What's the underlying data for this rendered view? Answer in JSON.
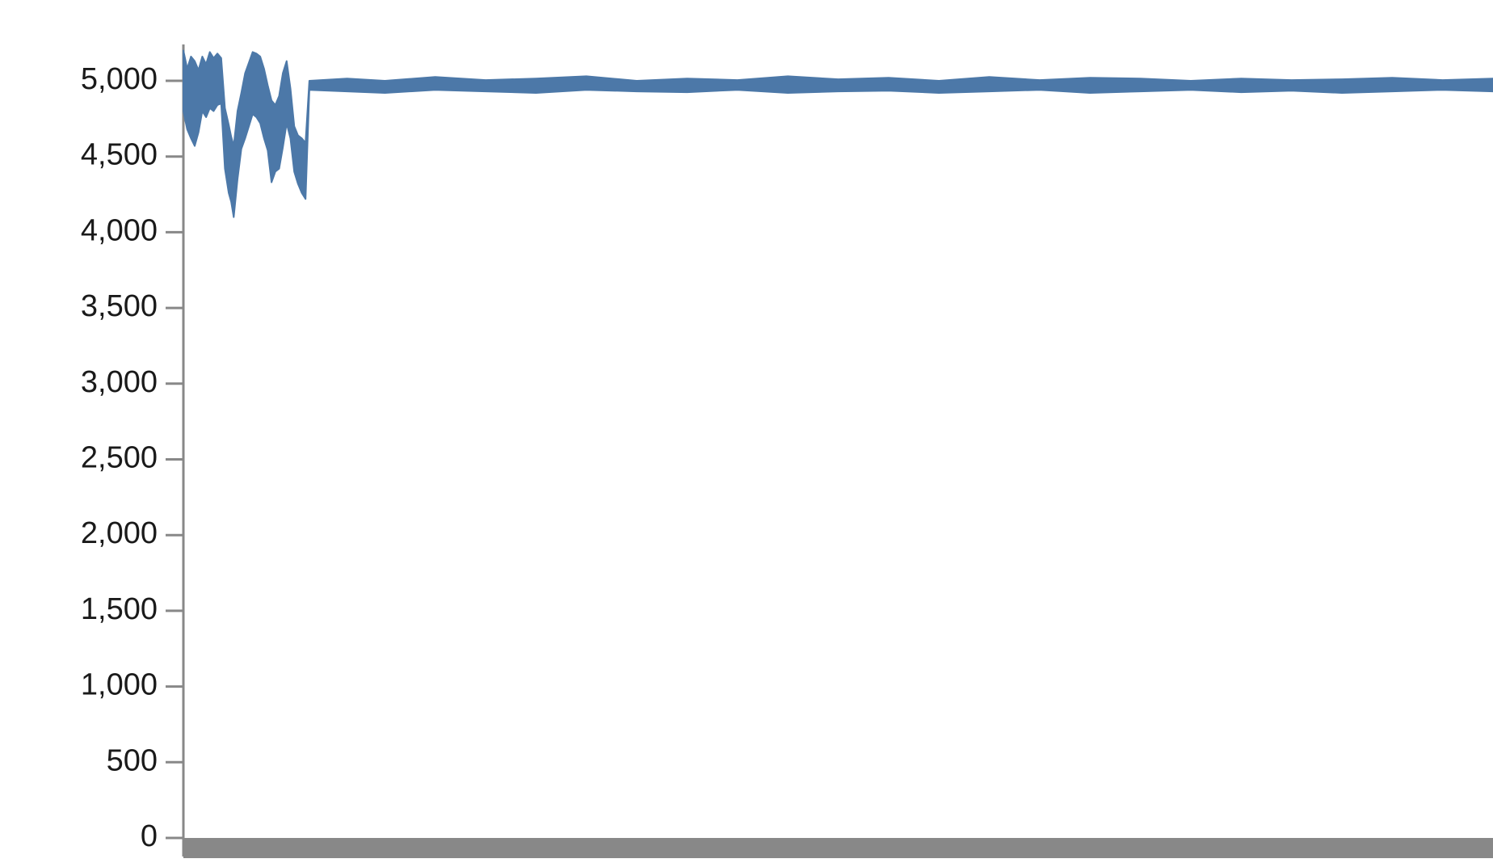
{
  "chart_data": {
    "type": "area",
    "title": "",
    "xlabel": "",
    "ylabel": "",
    "ylim": [
      0,
      5200
    ],
    "yticks": [
      0,
      500,
      1000,
      1500,
      2000,
      2500,
      3000,
      3500,
      4000,
      4500,
      5000
    ],
    "ytick_labels": [
      "0",
      "500",
      "1,000",
      "1,500",
      "2,000",
      "2,500",
      "3,000",
      "3,500",
      "4,000",
      "4,500",
      "5,000"
    ],
    "x_tick_labels_visible": false,
    "grid": false,
    "legend": "none",
    "colors": {
      "series": "#4c78a8",
      "axis": "#888888",
      "text": "#1a1a1a"
    },
    "series": [
      {
        "x": [
          0,
          3,
          6,
          9,
          12,
          15,
          18,
          21,
          24,
          27,
          30,
          33,
          36,
          38,
          40,
          43,
          46,
          49,
          52,
          55,
          58,
          61,
          64,
          67,
          70,
          73,
          76,
          79,
          82,
          85,
          88,
          91,
          94,
          97,
          100,
          130,
          160,
          200,
          240,
          280,
          320,
          360,
          400,
          440,
          480,
          520,
          560,
          600,
          640,
          680,
          720,
          760,
          800,
          840,
          880,
          920,
          960,
          1000,
          1040
        ],
        "upper": [
          5200,
          5080,
          5160,
          5130,
          5070,
          5160,
          5110,
          5190,
          5150,
          5180,
          5150,
          4820,
          4710,
          4630,
          4570,
          4800,
          4920,
          5050,
          5120,
          5190,
          5180,
          5160,
          5080,
          4970,
          4870,
          4840,
          4900,
          5050,
          5130,
          4950,
          4700,
          4640,
          4620,
          4590,
          5000,
          5015,
          5000,
          5025,
          5005,
          5015,
          5030,
          5000,
          5015,
          5005,
          5030,
          5010,
          5020,
          5000,
          5025,
          5005,
          5020,
          5015,
          5000,
          5015,
          5005,
          5010,
          5020,
          5005,
          5015
        ],
        "lower": [
          4800,
          4680,
          4620,
          4570,
          4660,
          4800,
          4760,
          4820,
          4800,
          4840,
          4850,
          4420,
          4260,
          4200,
          4100,
          4350,
          4550,
          4620,
          4700,
          4780,
          4760,
          4720,
          4620,
          4540,
          4330,
          4400,
          4420,
          4560,
          4720,
          4620,
          4400,
          4320,
          4260,
          4220,
          4940,
          4930,
          4920,
          4940,
          4930,
          4920,
          4940,
          4930,
          4925,
          4940,
          4920,
          4930,
          4935,
          4920,
          4930,
          4940,
          4920,
          4930,
          4940,
          4925,
          4935,
          4920,
          4930,
          4940,
          4930
        ]
      }
    ]
  }
}
